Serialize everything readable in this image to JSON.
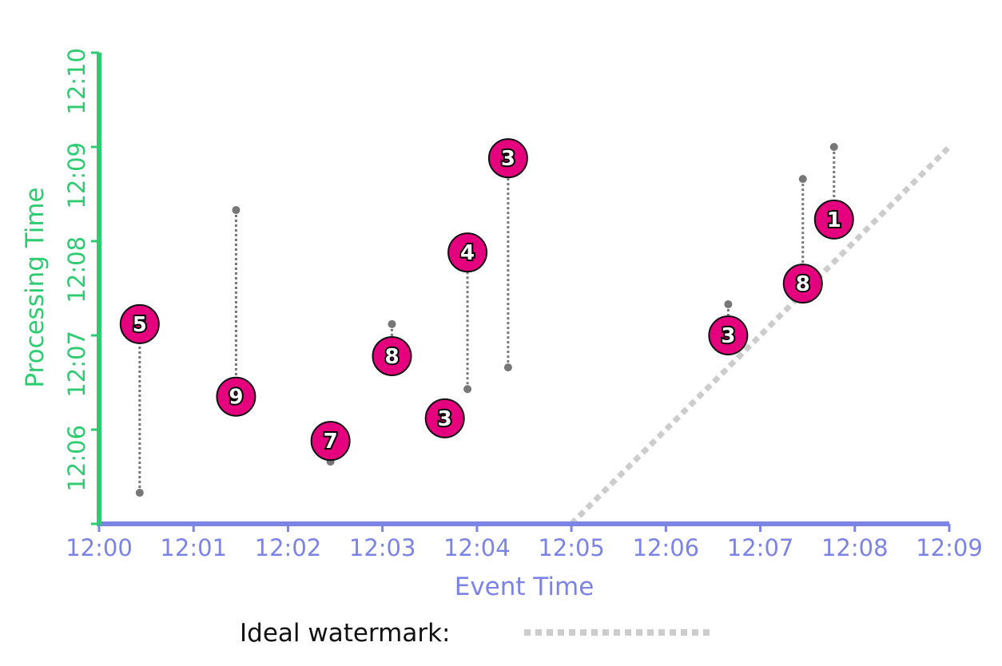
{
  "chart_data": {
    "type": "scatter",
    "title": "",
    "xlabel": "Event Time",
    "ylabel": "Processing Time",
    "x_ticks": [
      "12:00",
      "12:01",
      "12:02",
      "12:03",
      "12:04",
      "12:05",
      "12:06",
      "12:07",
      "12:08",
      "12:09"
    ],
    "y_ticks": [
      "12:06",
      "12:07",
      "12:08",
      "12:09",
      "12:10"
    ],
    "x_range_minutes": [
      0,
      9
    ],
    "y_range_minutes": [
      5,
      10
    ],
    "ideal_watermark": {
      "label": "Ideal watermark:",
      "from": [
        5.0,
        5.0
      ],
      "to": [
        9.0,
        9.0
      ]
    },
    "points": [
      {
        "value": "5",
        "event": 0.43,
        "ideal": 5.33,
        "processed": 7.12
      },
      {
        "value": "9",
        "event": 1.45,
        "ideal": 8.33,
        "processed": 6.35
      },
      {
        "value": "7",
        "event": 2.45,
        "ideal": 5.66,
        "processed": 5.88
      },
      {
        "value": "8",
        "event": 3.1,
        "ideal": 7.12,
        "processed": 6.78
      },
      {
        "value": "3",
        "event": 3.66,
        "ideal": 6.12,
        "processed": 6.12
      },
      {
        "value": "4",
        "event": 3.9,
        "ideal": 6.43,
        "processed": 7.88
      },
      {
        "value": "3",
        "event": 4.33,
        "ideal": 6.66,
        "processed": 8.88
      },
      {
        "value": "3",
        "event": 6.66,
        "ideal": 7.33,
        "processed": 7.0
      },
      {
        "value": "8",
        "event": 7.45,
        "ideal": 8.66,
        "processed": 7.55
      },
      {
        "value": "1",
        "event": 7.78,
        "ideal": 9.0,
        "processed": 8.23
      }
    ],
    "grid": false,
    "legend": "bottom-center"
  },
  "colors": {
    "x_axis": "#7b84e6",
    "y_axis": "#2ecc71",
    "point_fill": "#e5007e",
    "connector": "#777777",
    "watermark": "#cccccc"
  }
}
